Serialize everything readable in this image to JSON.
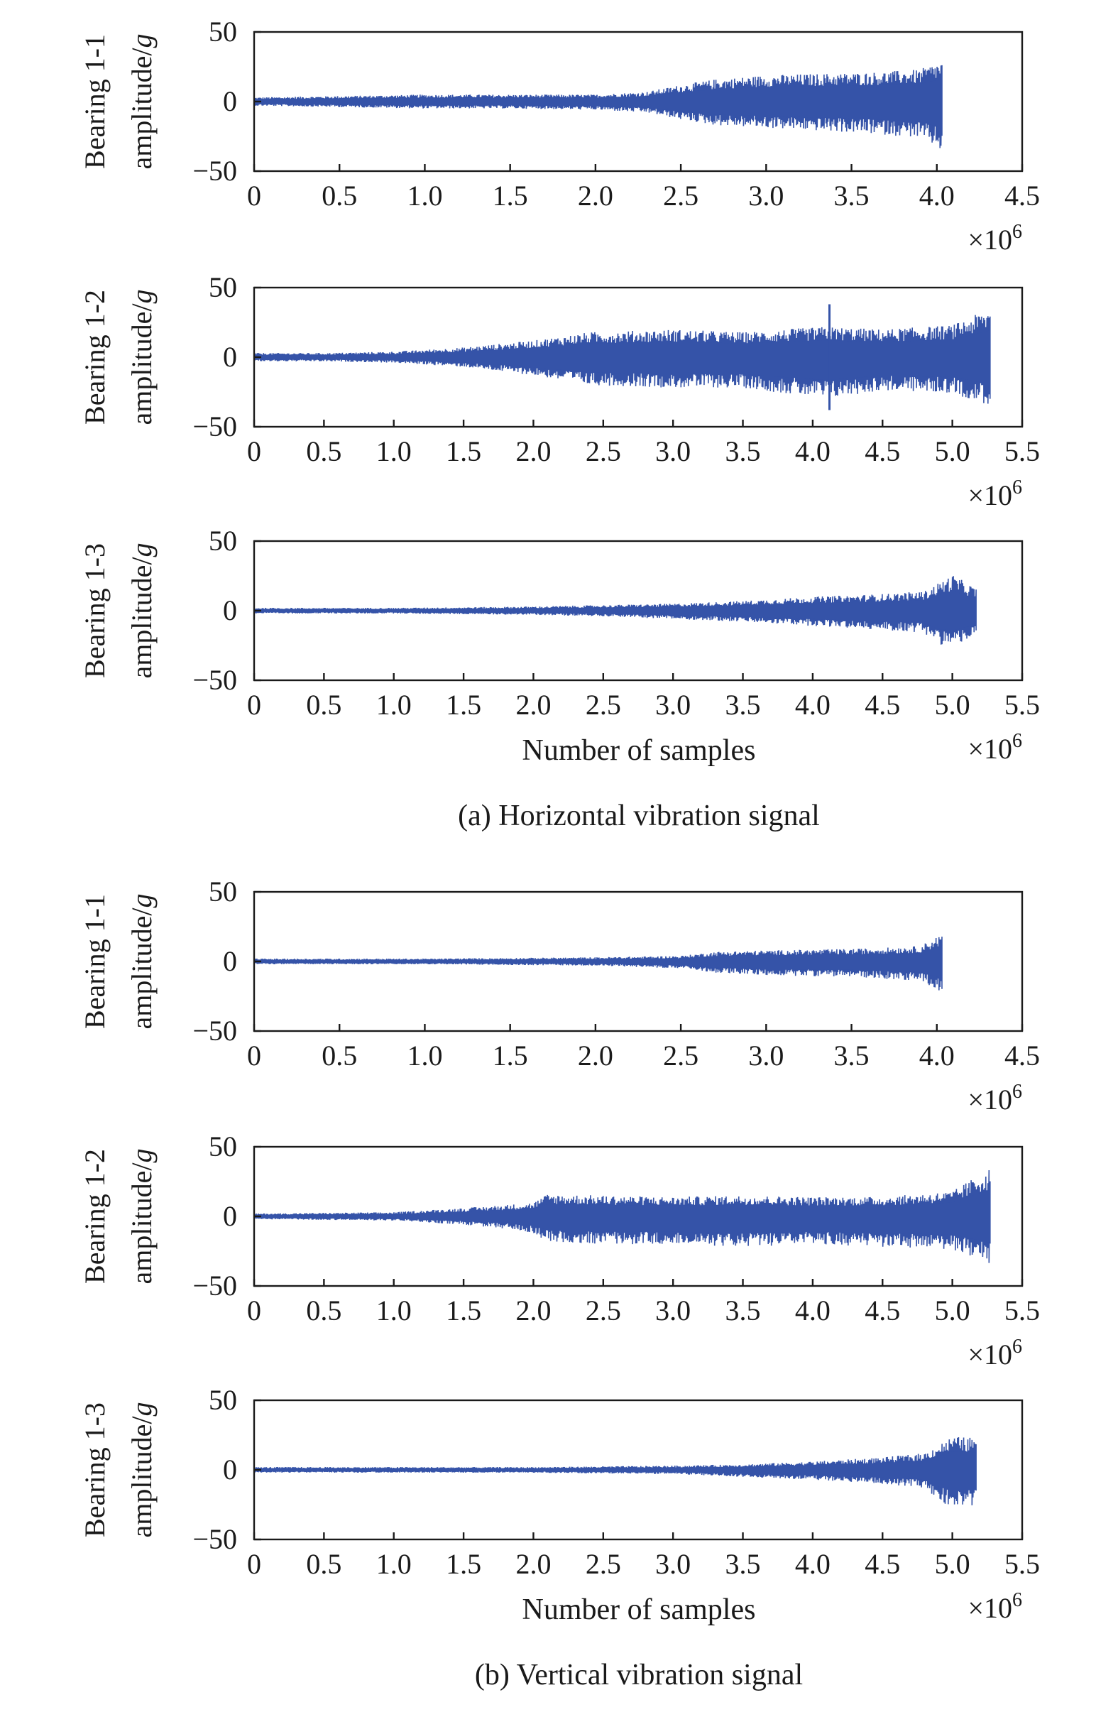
{
  "chart_data": [
    {
      "type": "area",
      "panel": "a",
      "signal": "horizontal",
      "title": "",
      "xlabel": "",
      "ylabel_line1": "Bearing 1-1",
      "ylabel_line2": "amplitude/g",
      "x_multiplier": "×10^6",
      "xlim": [
        0,
        4.5
      ],
      "ylim": [
        -50,
        50
      ],
      "x_ticks": [
        "0",
        "0.5",
        "1.0",
        "1.5",
        "2.0",
        "2.5",
        "3.0",
        "3.5",
        "4.0",
        "4.5"
      ],
      "y_ticks": [
        "50",
        "0",
        "−50"
      ],
      "x_end": 4.03,
      "envelope": {
        "x": [
          0,
          0.5,
          1.0,
          1.5,
          2.0,
          2.3,
          2.5,
          2.7,
          3.0,
          3.3,
          3.6,
          3.9,
          4.0,
          4.03
        ],
        "upper": [
          3,
          4,
          5,
          5,
          5,
          7,
          12,
          16,
          19,
          20,
          21,
          23,
          28,
          29
        ],
        "lower": [
          -3,
          -4,
          -5,
          -5,
          -6,
          -8,
          -13,
          -17,
          -19,
          -21,
          -23,
          -26,
          -33,
          -36
        ]
      }
    },
    {
      "type": "area",
      "panel": "a",
      "signal": "horizontal",
      "title": "",
      "xlabel": "",
      "ylabel_line1": "Bearing 1-2",
      "ylabel_line2": "amplitude/g",
      "x_multiplier": "×10^6",
      "xlim": [
        0,
        5.5
      ],
      "ylim": [
        -50,
        50
      ],
      "x_ticks": [
        "0",
        "0.5",
        "1.0",
        "1.5",
        "2.0",
        "2.5",
        "3.0",
        "3.5",
        "4.0",
        "4.5",
        "5.0",
        "5.5"
      ],
      "y_ticks": [
        "50",
        "0",
        "−50"
      ],
      "x_end": 5.27,
      "envelope": {
        "x": [
          0,
          0.5,
          1.0,
          1.5,
          2.0,
          2.4,
          3.0,
          3.5,
          4.1,
          4.5,
          5.0,
          5.27
        ],
        "upper": [
          3,
          3,
          4,
          7,
          12,
          18,
          20,
          18,
          22,
          20,
          23,
          35
        ],
        "lower": [
          -3,
          -3,
          -4,
          -7,
          -13,
          -20,
          -22,
          -22,
          -30,
          -24,
          -26,
          -35
        ]
      },
      "spikes": [
        {
          "x": 4.12,
          "y": 38
        },
        {
          "x": 4.12,
          "y": -38
        }
      ]
    },
    {
      "type": "area",
      "panel": "a",
      "signal": "horizontal",
      "title": "",
      "xlabel": "Number of samples",
      "ylabel_line1": "Bearing 1-3",
      "ylabel_line2": "amplitude/g",
      "x_multiplier": "×10^6",
      "xlim": [
        0,
        5.5
      ],
      "ylim": [
        -50,
        50
      ],
      "x_ticks": [
        "0",
        "0.5",
        "1.0",
        "1.5",
        "2.0",
        "2.5",
        "3.0",
        "3.5",
        "4.0",
        "4.5",
        "5.0",
        "5.5"
      ],
      "y_ticks": [
        "50",
        "0",
        "−50"
      ],
      "x_end": 5.17,
      "envelope": {
        "x": [
          0,
          1.0,
          2.0,
          2.5,
          3.0,
          3.5,
          4.0,
          4.5,
          4.8,
          4.9,
          5.0,
          5.17
        ],
        "upper": [
          2,
          2,
          3,
          4,
          5,
          7,
          10,
          12,
          14,
          20,
          26,
          16
        ],
        "lower": [
          -2,
          -2,
          -3,
          -4,
          -6,
          -8,
          -11,
          -14,
          -16,
          -24,
          -26,
          -18
        ]
      }
    },
    {
      "type": "area",
      "panel": "b",
      "signal": "vertical",
      "title": "",
      "xlabel": "",
      "ylabel_line1": "Bearing 1-1",
      "ylabel_line2": "amplitude/g",
      "x_multiplier": "×10^6",
      "xlim": [
        0,
        4.5
      ],
      "ylim": [
        -50,
        50
      ],
      "x_ticks": [
        "0",
        "0.5",
        "1.0",
        "1.5",
        "2.0",
        "2.5",
        "3.0",
        "3.5",
        "4.0",
        "4.5"
      ],
      "y_ticks": [
        "50",
        "0",
        "−50"
      ],
      "x_end": 4.03,
      "envelope": {
        "x": [
          0,
          1.0,
          2.0,
          2.5,
          2.7,
          3.0,
          3.5,
          3.9,
          4.0,
          4.03
        ],
        "upper": [
          2,
          2,
          3,
          4,
          7,
          8,
          9,
          11,
          18,
          20
        ],
        "lower": [
          -2,
          -2,
          -3,
          -5,
          -8,
          -10,
          -11,
          -14,
          -20,
          -22
        ]
      }
    },
    {
      "type": "area",
      "panel": "b",
      "signal": "vertical",
      "title": "",
      "xlabel": "",
      "ylabel_line1": "Bearing 1-2",
      "ylabel_line2": "amplitude/g",
      "x_multiplier": "×10^6",
      "xlim": [
        0,
        5.5
      ],
      "ylim": [
        -50,
        50
      ],
      "x_ticks": [
        "0",
        "0.5",
        "1.0",
        "1.5",
        "2.0",
        "2.5",
        "3.0",
        "3.5",
        "4.0",
        "4.5",
        "5.0",
        "5.5"
      ],
      "y_ticks": [
        "50",
        "0",
        "−50"
      ],
      "x_end": 5.27,
      "envelope": {
        "x": [
          0,
          1.0,
          1.5,
          1.9,
          2.0,
          2.1,
          2.5,
          3.0,
          3.5,
          4.0,
          4.5,
          5.0,
          5.27
        ],
        "upper": [
          2,
          3,
          6,
          9,
          10,
          16,
          15,
          14,
          15,
          14,
          14,
          18,
          35
        ],
        "lower": [
          -2,
          -3,
          -6,
          -10,
          -12,
          -18,
          -20,
          -20,
          -22,
          -20,
          -22,
          -24,
          -34
        ]
      }
    },
    {
      "type": "area",
      "panel": "b",
      "signal": "vertical",
      "title": "",
      "xlabel": "Number of samples",
      "ylabel_line1": "Bearing 1-3",
      "ylabel_line2": "amplitude/g",
      "x_multiplier": "×10^6",
      "xlim": [
        0,
        5.5
      ],
      "ylim": [
        -50,
        50
      ],
      "x_ticks": [
        "0",
        "0.5",
        "1.0",
        "1.5",
        "2.0",
        "2.5",
        "3.0",
        "3.5",
        "4.0",
        "4.5",
        "5.0",
        "5.5"
      ],
      "y_ticks": [
        "50",
        "0",
        "−50"
      ],
      "x_end": 5.17,
      "envelope": {
        "x": [
          0,
          1.0,
          2.0,
          3.0,
          3.5,
          4.0,
          4.5,
          4.8,
          4.9,
          5.0,
          5.17
        ],
        "upper": [
          2,
          2,
          2,
          3,
          4,
          6,
          9,
          12,
          18,
          24,
          23
        ],
        "lower": [
          -2,
          -2,
          -2,
          -3,
          -5,
          -7,
          -10,
          -13,
          -22,
          -27,
          -26
        ]
      }
    }
  ],
  "captions": {
    "a": "(a) Horizontal vibration signal",
    "b": "(b) Vertical vibration signal"
  },
  "colors": {
    "signal": "#3553a8",
    "axis": "#1a1a1a"
  }
}
